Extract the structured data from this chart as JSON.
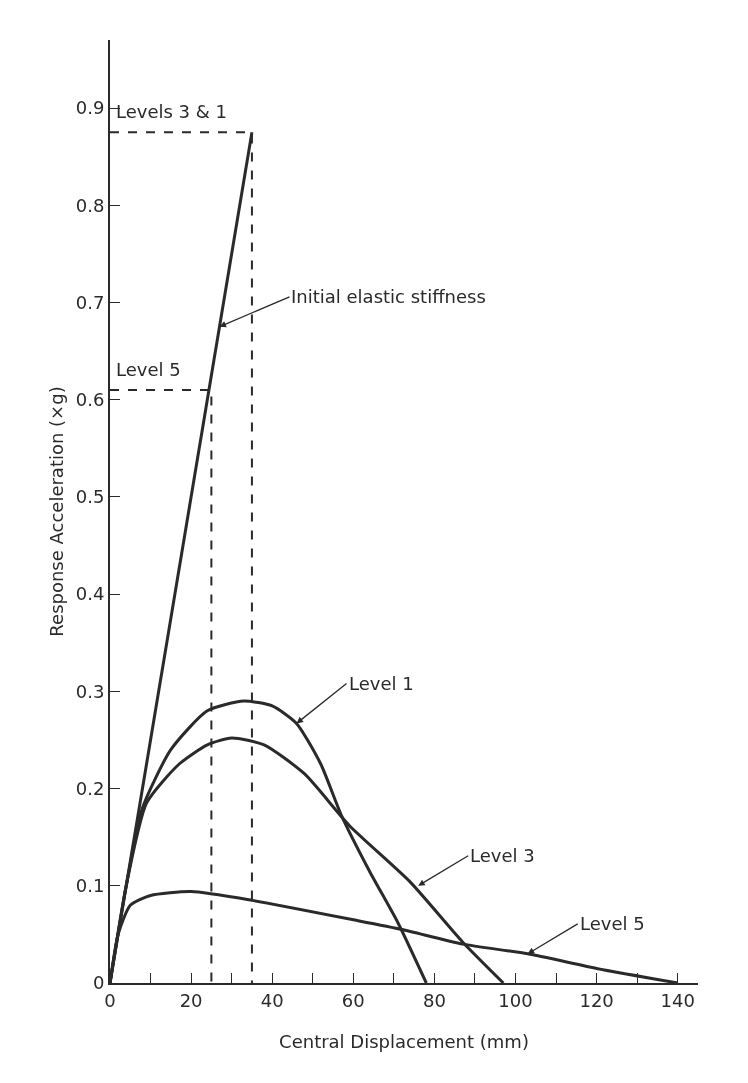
{
  "chart_data": {
    "type": "line",
    "xlabel": "Central Displacement (mm)",
    "ylabel": "Response Acceleration (×g)",
    "xlim": [
      0,
      145
    ],
    "ylim": [
      0,
      0.97
    ],
    "xticks": [
      0,
      {
        "value": 10,
        "label": null
      },
      20,
      {
        "value": 30,
        "label": null
      },
      40,
      {
        "value": 50,
        "label": null
      },
      60,
      {
        "value": 70,
        "label": null
      },
      80,
      {
        "value": 90,
        "label": null
      },
      100,
      {
        "value": 110,
        "label": null
      },
      120,
      {
        "value": 130,
        "label": null
      },
      140
    ],
    "yticks": [
      0,
      0.1,
      0.2,
      0.3,
      0.4,
      0.5,
      0.6,
      0.7,
      0.8,
      0.9
    ],
    "grid": false,
    "marker": "none",
    "series": [
      {
        "color": "#2a2a2a",
        "x": [
          0,
          35
        ],
        "values": [
          0,
          0.875
        ]
      },
      {
        "color": "#2a2a2a",
        "x": [
          0,
          4,
          8,
          15,
          24,
          33,
          40,
          46,
          52,
          57,
          64,
          71,
          78
        ],
        "values": [
          0,
          0.1,
          0.18,
          0.24,
          0.28,
          0.29,
          0.285,
          0.267,
          0.225,
          0.173,
          0.115,
          0.062,
          0
        ]
      },
      {
        "color": "#2a2a2a",
        "x": [
          0,
          4,
          9,
          17,
          24,
          30,
          38,
          48,
          59,
          74,
          87,
          97
        ],
        "values": [
          0,
          0.1,
          0.185,
          0.225,
          0.245,
          0.252,
          0.245,
          0.215,
          0.162,
          0.104,
          0.042,
          0
        ]
      },
      {
        "color": "#2a2a2a",
        "x": [
          0,
          2,
          5,
          10,
          20,
          35,
          60,
          72,
          87,
          103,
          120,
          140
        ],
        "values": [
          0,
          0.05,
          0.08,
          0.09,
          0.094,
          0.085,
          0.065,
          0.055,
          0.04,
          0.03,
          0.015,
          0
        ]
      },
      {
        "color": "#2a2a2a",
        "line_style": "dashed",
        "x": [
          0,
          35,
          35
        ],
        "values": [
          0.875,
          0.875,
          0
        ]
      },
      {
        "color": "#2a2a2a",
        "line_style": "dashed",
        "x": [
          0,
          25,
          25
        ],
        "values": [
          0.61,
          0.61,
          0
        ]
      }
    ],
    "annotations": [
      {
        "text": "Initial elastic stiffness",
        "x": 27,
        "y": 0.675
      },
      {
        "text": "Level 1",
        "x": 46,
        "y": 0.267
      },
      {
        "text": "Level 3",
        "x": 76,
        "y": 0.1
      },
      {
        "text": "Level 5",
        "x": 103,
        "y": 0.03
      },
      {
        "text": "Levels 3 & 1",
        "x": 0,
        "y": 0.875
      },
      {
        "text": "Level 5",
        "x": 0,
        "y": 0.61
      }
    ]
  }
}
